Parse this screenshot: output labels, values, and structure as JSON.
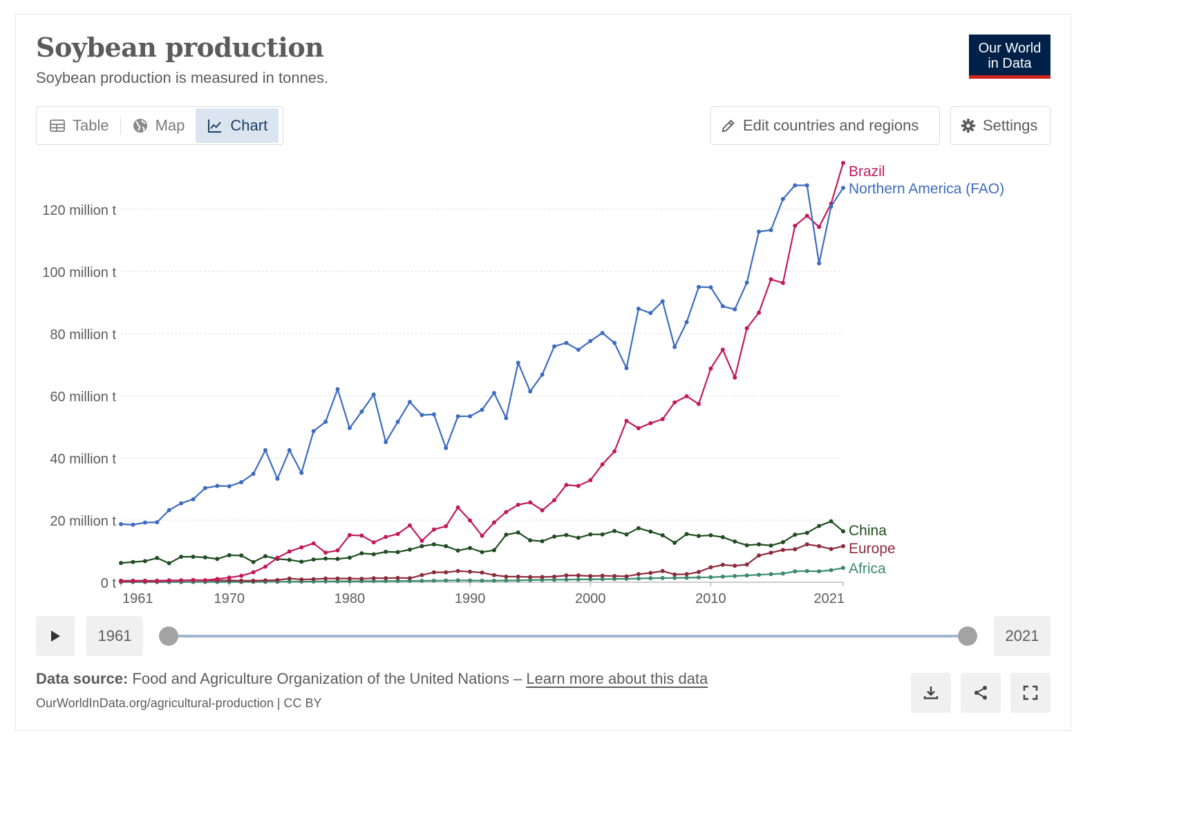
{
  "header": {
    "title": "Soybean production",
    "subtitle": "Soybean production is measured in tonnes.",
    "logo_line1": "Our World",
    "logo_line2": "in Data"
  },
  "tabs": {
    "table": "Table",
    "map": "Map",
    "chart": "Chart",
    "active": "chart"
  },
  "buttons": {
    "edit": "Edit countries and regions",
    "settings": "Settings"
  },
  "timeline": {
    "start": "1961",
    "end": "2021"
  },
  "footer": {
    "source_label": "Data source:",
    "source_text": "Food and Agriculture Organization of the United Nations –",
    "source_link": "Learn more about this data",
    "url": "OurWorldInData.org/agricultural-production | CC BY"
  },
  "colors": {
    "accent": "#002147",
    "logo_bar": "#ce261e",
    "grid": "#dddddd"
  },
  "chart_data": {
    "type": "line",
    "title": "Soybean production",
    "ylabel": "tonnes",
    "ylim": [
      0,
      140000000
    ],
    "yticks": [
      {
        "v": 0,
        "label": "0 t"
      },
      {
        "v": 20000000,
        "label": "20 million t"
      },
      {
        "v": 40000000,
        "label": "40 million t"
      },
      {
        "v": 60000000,
        "label": "60 million t"
      },
      {
        "v": 80000000,
        "label": "80 million t"
      },
      {
        "v": 100000000,
        "label": "100 million t"
      },
      {
        "v": 120000000,
        "label": "120 million t"
      }
    ],
    "xticks": [
      1961,
      1970,
      1980,
      1990,
      2000,
      2010,
      2021
    ],
    "x": [
      1961,
      1962,
      1963,
      1964,
      1965,
      1966,
      1967,
      1968,
      1969,
      1970,
      1971,
      1972,
      1973,
      1974,
      1975,
      1976,
      1977,
      1978,
      1979,
      1980,
      1981,
      1982,
      1983,
      1984,
      1985,
      1986,
      1987,
      1988,
      1989,
      1990,
      1991,
      1992,
      1993,
      1994,
      1995,
      1996,
      1997,
      1998,
      1999,
      2000,
      2001,
      2002,
      2003,
      2004,
      2005,
      2006,
      2007,
      2008,
      2009,
      2010,
      2011,
      2012,
      2013,
      2014,
      2015,
      2016,
      2017,
      2018,
      2019,
      2020,
      2021
    ],
    "series": [
      {
        "name": "Northern America (FAO)",
        "color": "#3c6bbf",
        "values": [
          18.7,
          18.5,
          19.2,
          19.3,
          23.2,
          25.4,
          26.7,
          30.3,
          31.0,
          30.9,
          32.2,
          34.9,
          42.5,
          33.3,
          42.5,
          35.2,
          48.6,
          51.6,
          62.1,
          49.6,
          54.9,
          60.4,
          45.1,
          51.6,
          58.0,
          53.8,
          54.0,
          43.2,
          53.4,
          53.4,
          55.5,
          60.9,
          52.8,
          70.6,
          61.4,
          66.8,
          75.9,
          77.0,
          74.8,
          77.6,
          80.2,
          77.0,
          68.9,
          88.0,
          86.6,
          90.4,
          75.7,
          83.7,
          95.0,
          94.9,
          88.8,
          87.8,
          96.4,
          112.8,
          113.3,
          123.3,
          127.7,
          127.7,
          102.6,
          120.9,
          126.9
        ]
      },
      {
        "name": "Brazil",
        "color": "#c2185b",
        "values": [
          0.27,
          0.35,
          0.32,
          0.3,
          0.52,
          0.59,
          0.72,
          0.65,
          1.06,
          1.51,
          2.08,
          3.22,
          5.01,
          7.88,
          9.89,
          11.23,
          12.51,
          9.54,
          10.24,
          15.16,
          15.01,
          12.84,
          14.58,
          15.54,
          18.28,
          13.33,
          16.98,
          18.02,
          24.05,
          19.9,
          14.94,
          19.21,
          22.59,
          24.93,
          25.68,
          23.15,
          26.39,
          31.31,
          30.99,
          32.82,
          37.91,
          42.11,
          51.92,
          49.55,
          51.18,
          52.46,
          57.86,
          59.83,
          57.35,
          68.76,
          74.82,
          65.85,
          81.72,
          86.76,
          97.46,
          96.3,
          114.7,
          117.9,
          114.3,
          121.8,
          134.9
        ]
      },
      {
        "name": "China",
        "color": "#1f4d1f",
        "values": [
          6.2,
          6.5,
          6.8,
          7.8,
          6.1,
          8.2,
          8.2,
          8.0,
          7.5,
          8.7,
          8.6,
          6.5,
          8.4,
          7.5,
          7.2,
          6.6,
          7.3,
          7.6,
          7.5,
          7.9,
          9.3,
          9.0,
          9.8,
          9.7,
          10.5,
          11.6,
          12.2,
          11.6,
          10.2,
          11.0,
          9.7,
          10.3,
          15.3,
          16.0,
          13.5,
          13.2,
          14.7,
          15.2,
          14.3,
          15.4,
          15.4,
          16.5,
          15.4,
          17.4,
          16.3,
          15.1,
          12.7,
          15.5,
          14.9,
          15.1,
          14.5,
          13.1,
          11.9,
          12.2,
          11.8,
          12.9,
          15.3,
          15.9,
          18.1,
          19.6,
          16.4
        ]
      },
      {
        "name": "Europe",
        "color": "#8b2b3a",
        "values": [
          0.5,
          0.5,
          0.5,
          0.5,
          0.6,
          0.6,
          0.6,
          0.6,
          0.6,
          0.6,
          0.5,
          0.5,
          0.6,
          0.7,
          1.2,
          0.9,
          1.0,
          1.2,
          1.2,
          1.2,
          1.1,
          1.3,
          1.3,
          1.4,
          1.3,
          2.3,
          3.2,
          3.2,
          3.6,
          3.4,
          3.1,
          2.3,
          1.8,
          1.8,
          1.7,
          1.7,
          1.8,
          2.2,
          2.2,
          2.0,
          2.1,
          2.0,
          1.9,
          2.6,
          3.0,
          3.6,
          2.5,
          2.6,
          3.3,
          4.8,
          5.6,
          5.3,
          5.7,
          8.6,
          9.5,
          10.4,
          10.6,
          12.2,
          11.6,
          10.7,
          11.6
        ]
      },
      {
        "name": "Africa",
        "color": "#3a8a6e",
        "values": [
          0.05,
          0.05,
          0.05,
          0.05,
          0.06,
          0.06,
          0.07,
          0.07,
          0.08,
          0.08,
          0.09,
          0.1,
          0.12,
          0.14,
          0.18,
          0.2,
          0.22,
          0.25,
          0.28,
          0.3,
          0.33,
          0.35,
          0.38,
          0.4,
          0.42,
          0.45,
          0.5,
          0.55,
          0.6,
          0.55,
          0.5,
          0.5,
          0.55,
          0.6,
          0.7,
          0.75,
          0.8,
          0.85,
          0.9,
          0.95,
          1.0,
          1.05,
          1.1,
          1.2,
          1.3,
          1.35,
          1.4,
          1.45,
          1.55,
          1.6,
          1.8,
          2.0,
          2.2,
          2.4,
          2.6,
          2.8,
          3.5,
          3.6,
          3.5,
          3.9,
          4.6
        ]
      }
    ],
    "end_labels": [
      "Brazil",
      "Northern America (FAO)",
      "China",
      "Europe",
      "Africa"
    ]
  }
}
